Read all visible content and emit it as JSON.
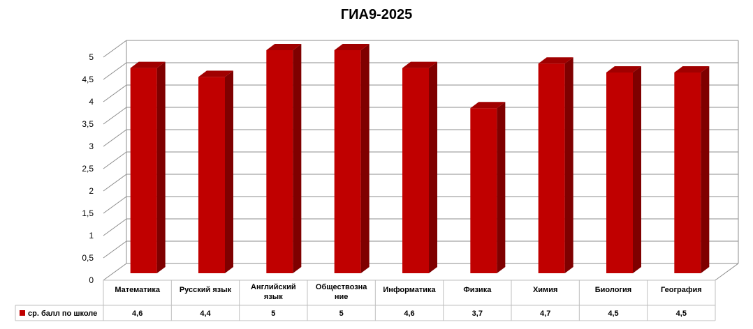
{
  "chart_data": {
    "type": "bar",
    "title": "ГИА9-2025",
    "categories": [
      [
        "Математика"
      ],
      [
        "Русский язык"
      ],
      [
        "Английский",
        "язык"
      ],
      [
        "Обществозна",
        "ние"
      ],
      [
        "Информатика"
      ],
      [
        "Физика"
      ],
      [
        "Химия"
      ],
      [
        "Биология"
      ],
      [
        "География"
      ]
    ],
    "series": [
      {
        "name": "ср. балл по школе",
        "values": [
          4.6,
          4.4,
          5,
          5,
          4.6,
          3.7,
          4.7,
          4.5,
          4.5
        ],
        "value_labels": [
          "4,6",
          "4,4",
          "5",
          "5",
          "4,6",
          "3,7",
          "4,7",
          "4,5",
          "4,5"
        ],
        "color": "#c00000"
      }
    ],
    "ylim": [
      0,
      5
    ],
    "yticks": [
      "0",
      "0,5",
      "1",
      "1,5",
      "2",
      "2,5",
      "3",
      "3,5",
      "4",
      "4,5",
      "5"
    ],
    "grid": true,
    "legend": "data-table-below",
    "chart_kind_detail": "3-D clustered column with data table"
  }
}
